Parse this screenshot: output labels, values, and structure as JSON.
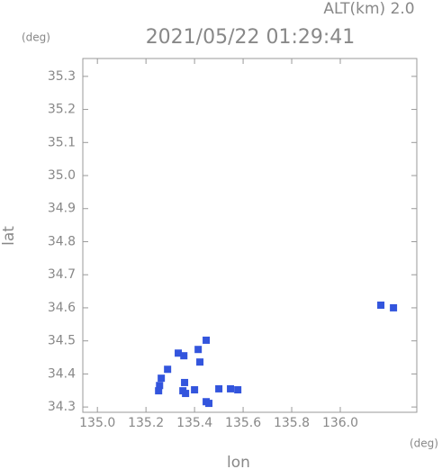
{
  "chart_data": {
    "type": "scatter",
    "title": "2021/05/22 01:29:41",
    "altitude_label": "ALT(km) 2.0",
    "y_unit": "(deg)",
    "x_unit": "(deg)",
    "x_label": "lon",
    "y_label": "lat",
    "color": "#3355dd",
    "x": [
      135.256,
      135.252,
      135.263,
      135.289,
      135.333,
      135.356,
      135.359,
      135.352,
      135.363,
      135.4,
      135.422,
      135.415,
      135.448,
      135.448,
      135.459,
      135.5,
      135.548,
      135.578,
      136.167,
      136.219
    ],
    "values": [
      34.365,
      34.349,
      34.387,
      34.414,
      34.463,
      34.455,
      34.374,
      34.349,
      34.341,
      34.352,
      34.436,
      34.474,
      34.502,
      34.316,
      34.311,
      34.355,
      34.355,
      34.352,
      34.608,
      34.6
    ],
    "xlim": [
      134.94,
      136.315
    ],
    "ylim": [
      34.284,
      35.354
    ],
    "xticks": [
      {
        "value": 135,
        "label": "135.0"
      },
      135.2,
      135.4,
      135.6,
      135.8,
      {
        "value": 136,
        "label": "136.0"
      }
    ],
    "yticks": [
      34.3,
      34.4,
      34.5,
      34.6,
      34.7,
      34.8,
      34.9,
      {
        "value": 35,
        "label": "35.0"
      },
      35.1,
      35.2,
      35.3
    ]
  }
}
